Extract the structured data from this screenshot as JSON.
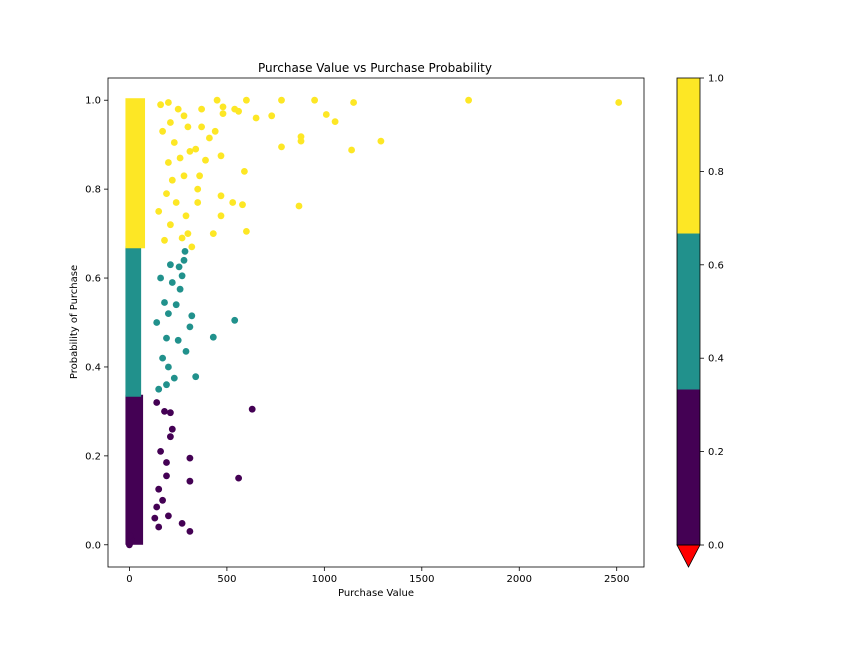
{
  "chart_data": {
    "type": "scatter",
    "title": "Purchase Value vs Purchase Probability",
    "xlabel": "Purchase Value",
    "ylabel": "Probability of Purchase",
    "xlim": [
      -110,
      2640
    ],
    "ylim": [
      -0.05,
      1.05
    ],
    "xticks": [
      0,
      500,
      1000,
      1500,
      2000,
      2500
    ],
    "yticks": [
      0.0,
      0.2,
      0.4,
      0.6,
      0.8,
      1.0
    ],
    "grid": false,
    "colormap": {
      "name": "viridis",
      "bins": [
        {
          "from": 0.0,
          "to": 0.333,
          "color": "#440154"
        },
        {
          "from": 0.333,
          "to": 0.667,
          "color": "#21918c"
        },
        {
          "from": 0.667,
          "to": 1.0,
          "color": "#fde725"
        }
      ],
      "under_color": "#ff0000",
      "ticks": [
        0.0,
        0.2,
        0.4,
        0.6,
        0.8,
        1.0
      ]
    },
    "points": [
      [
        2510,
        0.995
      ],
      [
        1740,
        1.0
      ],
      [
        1290,
        0.908
      ],
      [
        1150,
        0.995
      ],
      [
        1140,
        0.888
      ],
      [
        1055,
        0.952
      ],
      [
        1010,
        0.968
      ],
      [
        950,
        1.0
      ],
      [
        880,
        0.908
      ],
      [
        880,
        0.918
      ],
      [
        870,
        0.762
      ],
      [
        780,
        1.0
      ],
      [
        780,
        0.895
      ],
      [
        730,
        0.965
      ],
      [
        650,
        0.96
      ],
      [
        600,
        1.0
      ],
      [
        600,
        0.705
      ],
      [
        590,
        0.84
      ],
      [
        580,
        0.765
      ],
      [
        560,
        0.975
      ],
      [
        540,
        0.98
      ],
      [
        530,
        0.77
      ],
      [
        470,
        0.785
      ],
      [
        470,
        0.875
      ],
      [
        470,
        0.74
      ],
      [
        480,
        0.97
      ],
      [
        480,
        0.985
      ],
      [
        450,
        1.0
      ],
      [
        440,
        0.93
      ],
      [
        430,
        0.7
      ],
      [
        410,
        0.915
      ],
      [
        390,
        0.865
      ],
      [
        370,
        0.98
      ],
      [
        370,
        0.94
      ],
      [
        360,
        0.83
      ],
      [
        350,
        0.8
      ],
      [
        350,
        0.77
      ],
      [
        340,
        0.89
      ],
      [
        320,
        0.67
      ],
      [
        310,
        0.885
      ],
      [
        300,
        0.94
      ],
      [
        300,
        0.7
      ],
      [
        290,
        0.74
      ],
      [
        280,
        0.965
      ],
      [
        280,
        0.83
      ],
      [
        270,
        0.69
      ],
      [
        260,
        0.87
      ],
      [
        250,
        0.98
      ],
      [
        240,
        0.77
      ],
      [
        230,
        0.905
      ],
      [
        220,
        0.82
      ],
      [
        210,
        0.95
      ],
      [
        210,
        0.72
      ],
      [
        200,
        0.86
      ],
      [
        200,
        0.995
      ],
      [
        190,
        0.79
      ],
      [
        180,
        0.685
      ],
      [
        170,
        0.93
      ],
      [
        160,
        0.99
      ],
      [
        150,
        0.75
      ],
      [
        540,
        0.505
      ],
      [
        430,
        0.467
      ],
      [
        340,
        0.378
      ],
      [
        320,
        0.515
      ],
      [
        310,
        0.49
      ],
      [
        290,
        0.435
      ],
      [
        285,
        0.66
      ],
      [
        280,
        0.64
      ],
      [
        270,
        0.605
      ],
      [
        260,
        0.575
      ],
      [
        255,
        0.625
      ],
      [
        250,
        0.46
      ],
      [
        240,
        0.54
      ],
      [
        230,
        0.375
      ],
      [
        220,
        0.59
      ],
      [
        210,
        0.63
      ],
      [
        200,
        0.52
      ],
      [
        200,
        0.4
      ],
      [
        190,
        0.465
      ],
      [
        190,
        0.36
      ],
      [
        180,
        0.545
      ],
      [
        170,
        0.42
      ],
      [
        160,
        0.6
      ],
      [
        150,
        0.35
      ],
      [
        140,
        0.5
      ],
      [
        630,
        0.305
      ],
      [
        560,
        0.15
      ],
      [
        310,
        0.195
      ],
      [
        310,
        0.03
      ],
      [
        310,
        0.143
      ],
      [
        270,
        0.048
      ],
      [
        220,
        0.26
      ],
      [
        210,
        0.297
      ],
      [
        210,
        0.243
      ],
      [
        200,
        0.065
      ],
      [
        190,
        0.155
      ],
      [
        190,
        0.185
      ],
      [
        180,
        0.3
      ],
      [
        170,
        0.1
      ],
      [
        160,
        0.21
      ],
      [
        150,
        0.04
      ],
      [
        150,
        0.125
      ],
      [
        140,
        0.085
      ],
      [
        140,
        0.32
      ],
      [
        130,
        0.06
      ],
      [
        0,
        0.0
      ],
      [
        5,
        0.005
      ],
      [
        10,
        0.01
      ],
      [
        3,
        0.02
      ]
    ]
  }
}
